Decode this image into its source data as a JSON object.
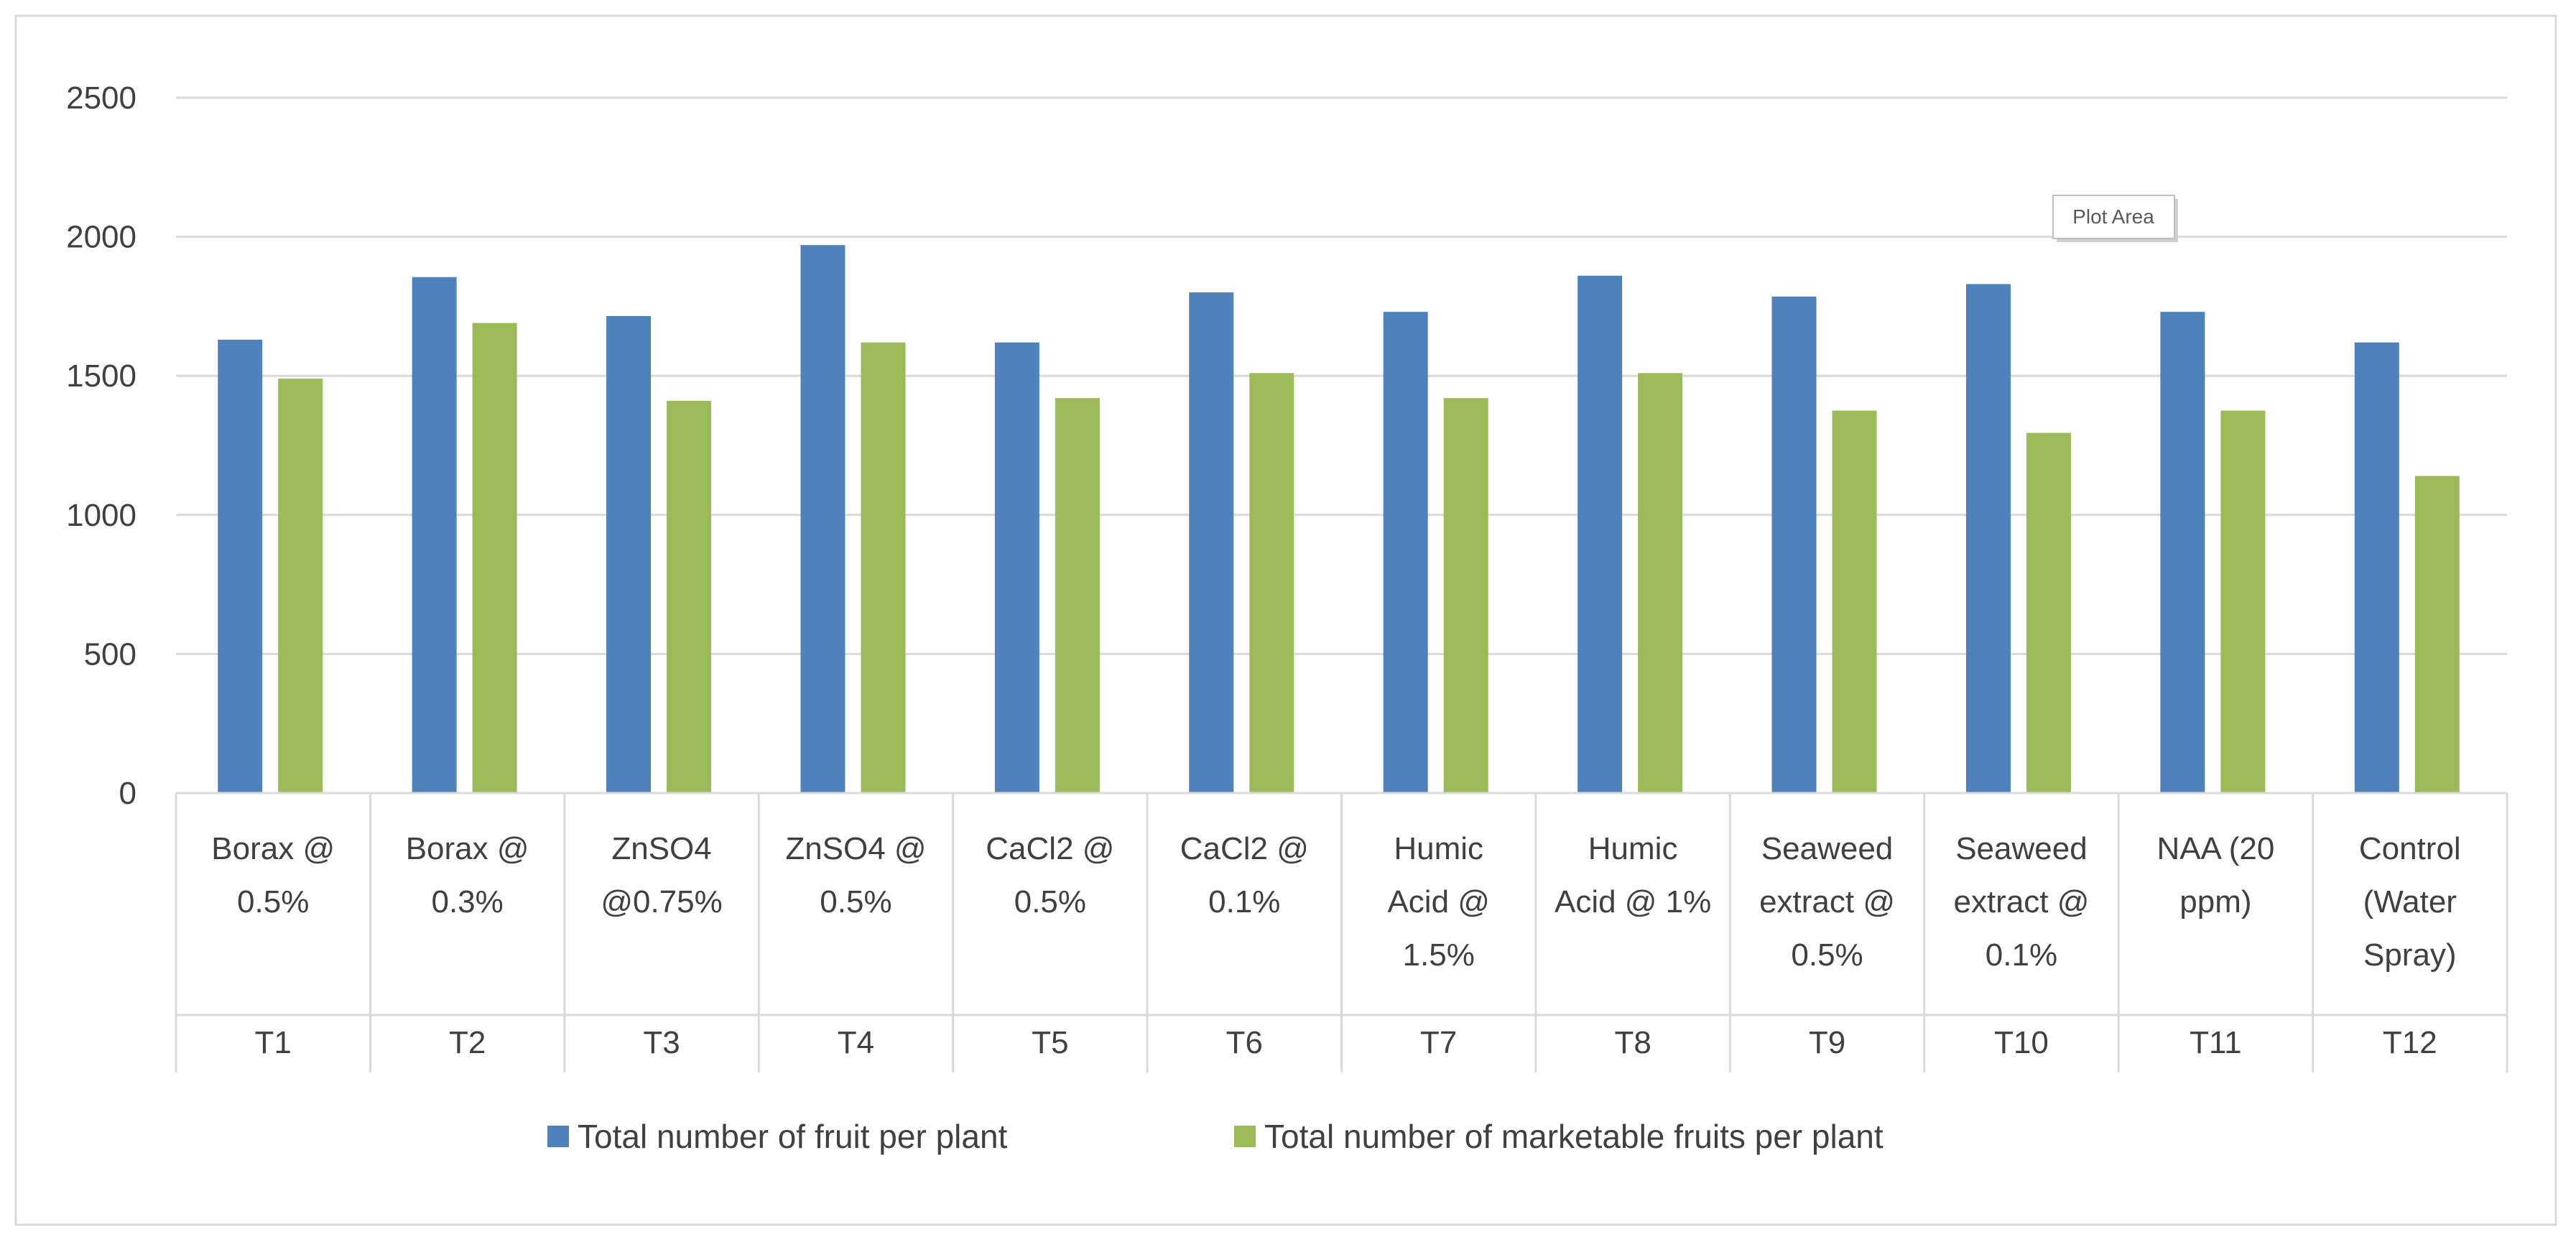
{
  "chart_data": {
    "type": "bar",
    "title": "",
    "xlabel": "",
    "ylabel": "",
    "ylim": [
      0,
      2500
    ],
    "yticks": [
      0,
      500,
      1000,
      1500,
      2000,
      2500
    ],
    "grid": true,
    "legend_position": "bottom",
    "categories": [
      {
        "code": "T1",
        "lines": [
          "Borax @",
          "0.5%"
        ]
      },
      {
        "code": "T2",
        "lines": [
          "Borax @",
          "0.3%"
        ]
      },
      {
        "code": "T3",
        "lines": [
          "ZnSO4",
          "@0.75%"
        ]
      },
      {
        "code": "T4",
        "lines": [
          "ZnSO4 @",
          "0.5%"
        ]
      },
      {
        "code": "T5",
        "lines": [
          "CaCl2 @",
          "0.5%"
        ]
      },
      {
        "code": "T6",
        "lines": [
          "CaCl2 @",
          "0.1%"
        ]
      },
      {
        "code": "T7",
        "lines": [
          "Humic",
          "Acid @",
          "1.5%"
        ]
      },
      {
        "code": "T8",
        "lines": [
          "Humic",
          "Acid @ 1%"
        ]
      },
      {
        "code": "T9",
        "lines": [
          "Seaweed",
          "extract @",
          "0.5%"
        ]
      },
      {
        "code": "T10",
        "lines": [
          "Seaweed",
          "extract @",
          "0.1%"
        ]
      },
      {
        "code": "T11",
        "lines": [
          "NAA (20",
          "ppm)"
        ]
      },
      {
        "code": "T12",
        "lines": [
          "Control",
          "(Water",
          "Spray)"
        ]
      }
    ],
    "series": [
      {
        "name": "Total number of fruit per plant",
        "color": "#4F81BD",
        "values": [
          1630,
          1855,
          1715,
          1970,
          1620,
          1800,
          1730,
          1860,
          1785,
          1830,
          1730,
          1620
        ]
      },
      {
        "name": "Total number of marketable fruits per plant",
        "color": "#9BBB59",
        "values": [
          1490,
          1690,
          1410,
          1620,
          1420,
          1510,
          1420,
          1510,
          1375,
          1295,
          1375,
          1140
        ]
      }
    ]
  },
  "tooltip": {
    "text": "Plot Area"
  }
}
